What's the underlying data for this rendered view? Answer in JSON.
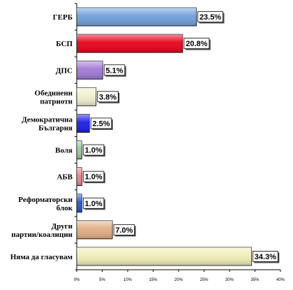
{
  "chart_data": {
    "type": "bar",
    "orientation": "horizontal",
    "categories": [
      [
        "ГЕРБ"
      ],
      [
        "БСП"
      ],
      [
        "ДПС"
      ],
      [
        "Обединени",
        "патриоти"
      ],
      [
        "Демократична",
        "България"
      ],
      [
        "Воля"
      ],
      [
        "АБВ"
      ],
      [
        "Реформаторски",
        "блок"
      ],
      [
        "Други",
        "партии/коалиции"
      ],
      [
        "Няма да гласувам"
      ]
    ],
    "values": [
      23.5,
      20.8,
      5.1,
      3.8,
      2.5,
      1.0,
      1.0,
      1.0,
      7.0,
      34.3
    ],
    "value_labels": [
      "23.5%",
      "20.8%",
      "5.1%",
      "3.8%",
      "2.5%",
      "1.0%",
      "1.0%",
      "1.0%",
      "7.0%",
      "34.3%"
    ],
    "colors": [
      "#6f9fdb",
      "#e8001a",
      "#a07ad6",
      "#f1efcf",
      "#1c1ce8",
      "#9bc79b",
      "#f0808a",
      "#2555c8",
      "#e0ad82",
      "#efedb7"
    ],
    "xlim": [
      0,
      40
    ],
    "x_ticks": [
      0,
      5,
      10,
      15,
      20,
      25,
      30,
      35,
      40
    ],
    "x_tick_labels": [
      "0%",
      "5%",
      "10%",
      "15%",
      "20%",
      "25%",
      "30%",
      "35%",
      "40%"
    ],
    "grid": false,
    "legend": false
  }
}
